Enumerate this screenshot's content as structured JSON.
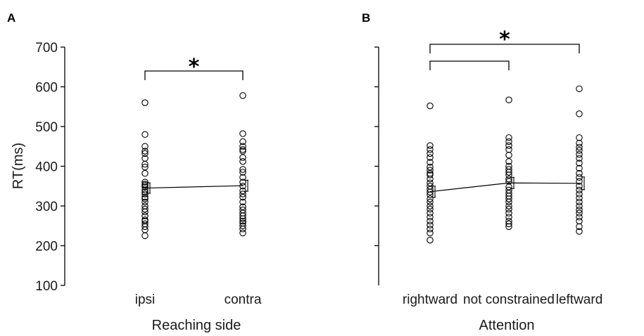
{
  "chart_data": [
    {
      "panel": "A",
      "type": "scatter",
      "xlabel": "Reaching side",
      "ylabel": "RT(ms)",
      "ylim": [
        100,
        700
      ],
      "yticks": [
        100,
        200,
        300,
        400,
        500,
        600,
        700
      ],
      "show_ytick_labels": true,
      "categories": [
        "ipsi",
        "contra"
      ],
      "points": [
        [
          225,
          240,
          248,
          255,
          262,
          265,
          275,
          285,
          292,
          300,
          310,
          318,
          322,
          330,
          335,
          340,
          348,
          352,
          355,
          360,
          382,
          398,
          405,
          420,
          432,
          438,
          450,
          480,
          560
        ],
        [
          232,
          242,
          250,
          257,
          262,
          268,
          275,
          282,
          290,
          298,
          310,
          322,
          330,
          338,
          350,
          360,
          372,
          385,
          392,
          412,
          422,
          438,
          442,
          450,
          462,
          482,
          578
        ]
      ],
      "means": [
        345,
        351
      ],
      "errors": [
        13,
        14
      ],
      "significance": [
        {
          "from": 0,
          "to": 1,
          "label": "*"
        }
      ]
    },
    {
      "panel": "B",
      "type": "scatter",
      "xlabel": "Attention",
      "ylabel": "",
      "ylim": [
        100,
        700
      ],
      "yticks": [
        200,
        300,
        400,
        500,
        600,
        700
      ],
      "show_ytick_labels": false,
      "categories": [
        "rightward",
        "not constrained",
        "leftward"
      ],
      "points": [
        [
          214,
          232,
          242,
          252,
          262,
          272,
          282,
          292,
          300,
          310,
          318,
          328,
          335,
          342,
          350,
          358,
          368,
          378,
          382,
          390,
          398,
          410,
          422,
          432,
          442,
          452,
          552
        ],
        [
          248,
          255,
          262,
          272,
          282,
          292,
          300,
          310,
          318,
          325,
          332,
          340,
          348,
          362,
          368,
          378,
          385,
          392,
          400,
          412,
          428,
          442,
          452,
          462,
          472,
          567
        ],
        [
          236,
          248,
          262,
          272,
          282,
          290,
          300,
          310,
          320,
          330,
          340,
          350,
          362,
          372,
          382,
          395,
          408,
          420,
          430,
          440,
          448,
          458,
          472,
          532,
          595
        ]
      ],
      "means": [
        336,
        358,
        357
      ],
      "errors": [
        14,
        14,
        16
      ],
      "significance": [
        {
          "from": 0,
          "to": 1,
          "label": ""
        },
        {
          "from": 0,
          "to": 2,
          "label": "*"
        }
      ]
    }
  ]
}
